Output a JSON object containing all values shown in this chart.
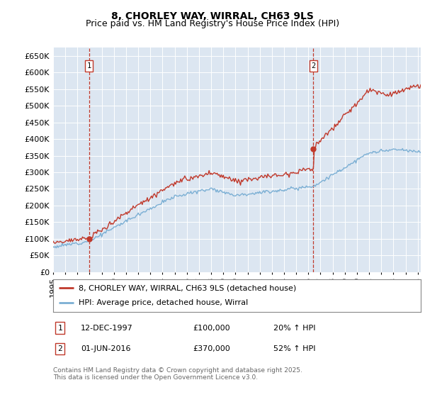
{
  "title": "8, CHORLEY WAY, WIRRAL, CH63 9LS",
  "subtitle": "Price paid vs. HM Land Registry's House Price Index (HPI)",
  "ylim": [
    0,
    675000
  ],
  "yticks": [
    0,
    50000,
    100000,
    150000,
    200000,
    250000,
    300000,
    350000,
    400000,
    450000,
    500000,
    550000,
    600000,
    650000
  ],
  "hpi_color": "#7bafd4",
  "price_color": "#c0392b",
  "bg_color": "#dce6f1",
  "grid_color": "#ffffff",
  "purchase1_year": 1997.958,
  "purchase1_price": 100000,
  "purchase2_year": 2016.417,
  "purchase2_price": 370000,
  "legend_label_price": "8, CHORLEY WAY, WIRRAL, CH63 9LS (detached house)",
  "legend_label_hpi": "HPI: Average price, detached house, Wirral",
  "annotation1_date": "12-DEC-1997",
  "annotation1_price": "£100,000",
  "annotation1_hpi": "20% ↑ HPI",
  "annotation2_date": "01-JUN-2016",
  "annotation2_price": "£370,000",
  "annotation2_hpi": "52% ↑ HPI",
  "footer": "Contains HM Land Registry data © Crown copyright and database right 2025.\nThis data is licensed under the Open Government Licence v3.0.",
  "title_fontsize": 10,
  "subtitle_fontsize": 9,
  "tick_fontsize": 8,
  "legend_fontsize": 8,
  "annotation_fontsize": 8,
  "footer_fontsize": 6.5
}
